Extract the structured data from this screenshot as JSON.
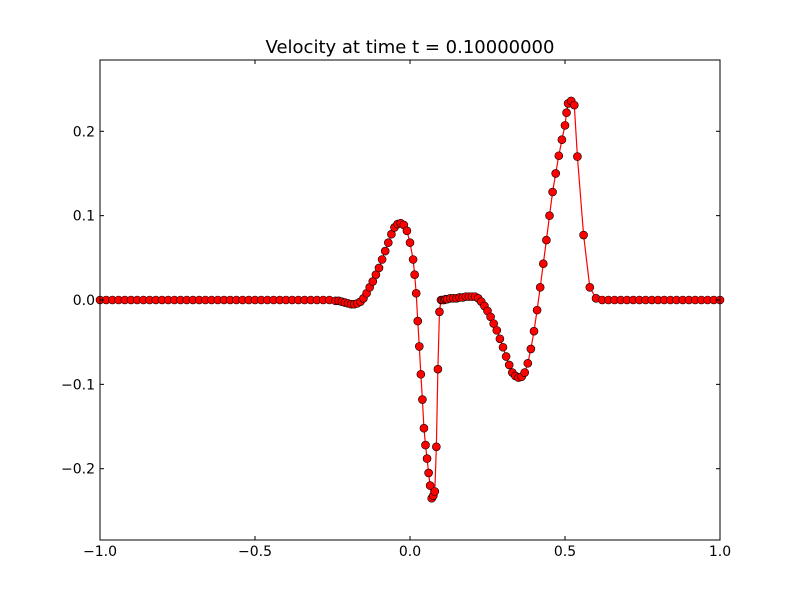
{
  "chart_data": {
    "type": "line",
    "title": "Velocity at time t =      0.10000000",
    "xlabel": "",
    "ylabel": "",
    "xlim": [
      -1.0,
      1.0
    ],
    "ylim": [
      -0.2845,
      0.2845
    ],
    "grid": false,
    "x_ticks": [
      -1.0,
      -0.5,
      0.0,
      0.5,
      1.0
    ],
    "x_tick_labels": [
      "−1.0",
      "−0.5",
      "0.0",
      "0.5",
      "1.0"
    ],
    "y_ticks": [
      -0.2,
      -0.1,
      0.0,
      0.1,
      0.2
    ],
    "y_tick_labels": [
      "−0.2",
      "−0.1",
      "0.0",
      "0.1",
      "0.2"
    ],
    "series": [
      {
        "line_color": "#ff0000",
        "marker_color": "#ff0000",
        "marker_edge": "#000000",
        "x": [
          -1.0,
          -0.98,
          -0.96,
          -0.94,
          -0.92,
          -0.9,
          -0.88,
          -0.86,
          -0.84,
          -0.82,
          -0.8,
          -0.78,
          -0.76,
          -0.74,
          -0.72,
          -0.7,
          -0.68,
          -0.66,
          -0.64,
          -0.62,
          -0.6,
          -0.58,
          -0.56,
          -0.54,
          -0.52,
          -0.5,
          -0.48,
          -0.46,
          -0.44,
          -0.42,
          -0.4,
          -0.38,
          -0.36,
          -0.34,
          -0.32,
          -0.3,
          -0.28,
          -0.26,
          -0.24,
          -0.23,
          -0.22,
          -0.21,
          -0.2,
          -0.19,
          -0.18,
          -0.17,
          -0.16,
          -0.15,
          -0.14,
          -0.13,
          -0.12,
          -0.11,
          -0.1,
          -0.09,
          -0.08,
          -0.07,
          -0.06,
          -0.05,
          -0.04,
          -0.03,
          -0.02,
          -0.01,
          0.0,
          0.01,
          0.015,
          0.02,
          0.025,
          0.03,
          0.035,
          0.04,
          0.045,
          0.05,
          0.055,
          0.06,
          0.065,
          0.07,
          0.075,
          0.08,
          0.085,
          0.09,
          0.095,
          0.1,
          0.105,
          0.11,
          0.115,
          0.12,
          0.13,
          0.14,
          0.15,
          0.16,
          0.17,
          0.18,
          0.19,
          0.2,
          0.21,
          0.22,
          0.23,
          0.24,
          0.25,
          0.26,
          0.27,
          0.28,
          0.29,
          0.3,
          0.31,
          0.32,
          0.33,
          0.34,
          0.35,
          0.36,
          0.37,
          0.38,
          0.39,
          0.4,
          0.41,
          0.42,
          0.43,
          0.44,
          0.45,
          0.46,
          0.47,
          0.48,
          0.49,
          0.5,
          0.505,
          0.51,
          0.52,
          0.53,
          0.54,
          0.56,
          0.58,
          0.6,
          0.62,
          0.64,
          0.66,
          0.68,
          0.7,
          0.72,
          0.74,
          0.76,
          0.78,
          0.8,
          0.82,
          0.84,
          0.86,
          0.88,
          0.9,
          0.92,
          0.94,
          0.96,
          0.98,
          1.0
        ],
        "y": [
          0.0,
          0.0,
          0.0,
          0.0,
          0.0,
          0.0,
          0.0,
          0.0,
          0.0,
          0.0,
          0.0,
          0.0,
          0.0,
          0.0,
          0.0,
          0.0,
          0.0,
          0.0,
          0.0,
          0.0,
          0.0,
          0.0,
          0.0,
          0.0,
          0.0,
          0.0,
          0.0,
          0.0,
          0.0,
          0.0,
          0.0,
          0.0,
          0.0,
          0.0,
          0.0,
          0.0,
          0.0,
          0.0,
          -0.001,
          -0.001,
          -0.002,
          -0.003,
          -0.004,
          -0.005,
          -0.005,
          -0.004,
          -0.002,
          0.002,
          0.008,
          0.015,
          0.022,
          0.03,
          0.038,
          0.048,
          0.058,
          0.068,
          0.078,
          0.086,
          0.09,
          0.091,
          0.089,
          0.082,
          0.068,
          0.048,
          0.03,
          0.008,
          -0.025,
          -0.055,
          -0.088,
          -0.118,
          -0.152,
          -0.172,
          -0.188,
          -0.205,
          -0.22,
          -0.235,
          -0.232,
          -0.227,
          -0.174,
          -0.082,
          -0.014,
          0.0,
          0.0,
          0.0,
          0.001,
          0.001,
          0.002,
          0.002,
          0.002,
          0.003,
          0.003,
          0.004,
          0.004,
          0.004,
          0.004,
          0.002,
          -0.002,
          -0.007,
          -0.013,
          -0.02,
          -0.028,
          -0.036,
          -0.046,
          -0.056,
          -0.067,
          -0.077,
          -0.086,
          -0.09,
          -0.092,
          -0.091,
          -0.086,
          -0.075,
          -0.058,
          -0.037,
          -0.012,
          0.015,
          0.043,
          0.071,
          0.1,
          0.128,
          0.15,
          0.171,
          0.19,
          0.207,
          0.222,
          0.233,
          0.236,
          0.231,
          0.17,
          0.077,
          0.015,
          0.002,
          0.0,
          0.0,
          0.0,
          0.0,
          0.0,
          0.0,
          0.0,
          0.0,
          0.0,
          0.0,
          0.0,
          0.0,
          0.0,
          0.0,
          0.0,
          0.0,
          0.0,
          0.0,
          0.0,
          0.0
        ]
      }
    ]
  }
}
